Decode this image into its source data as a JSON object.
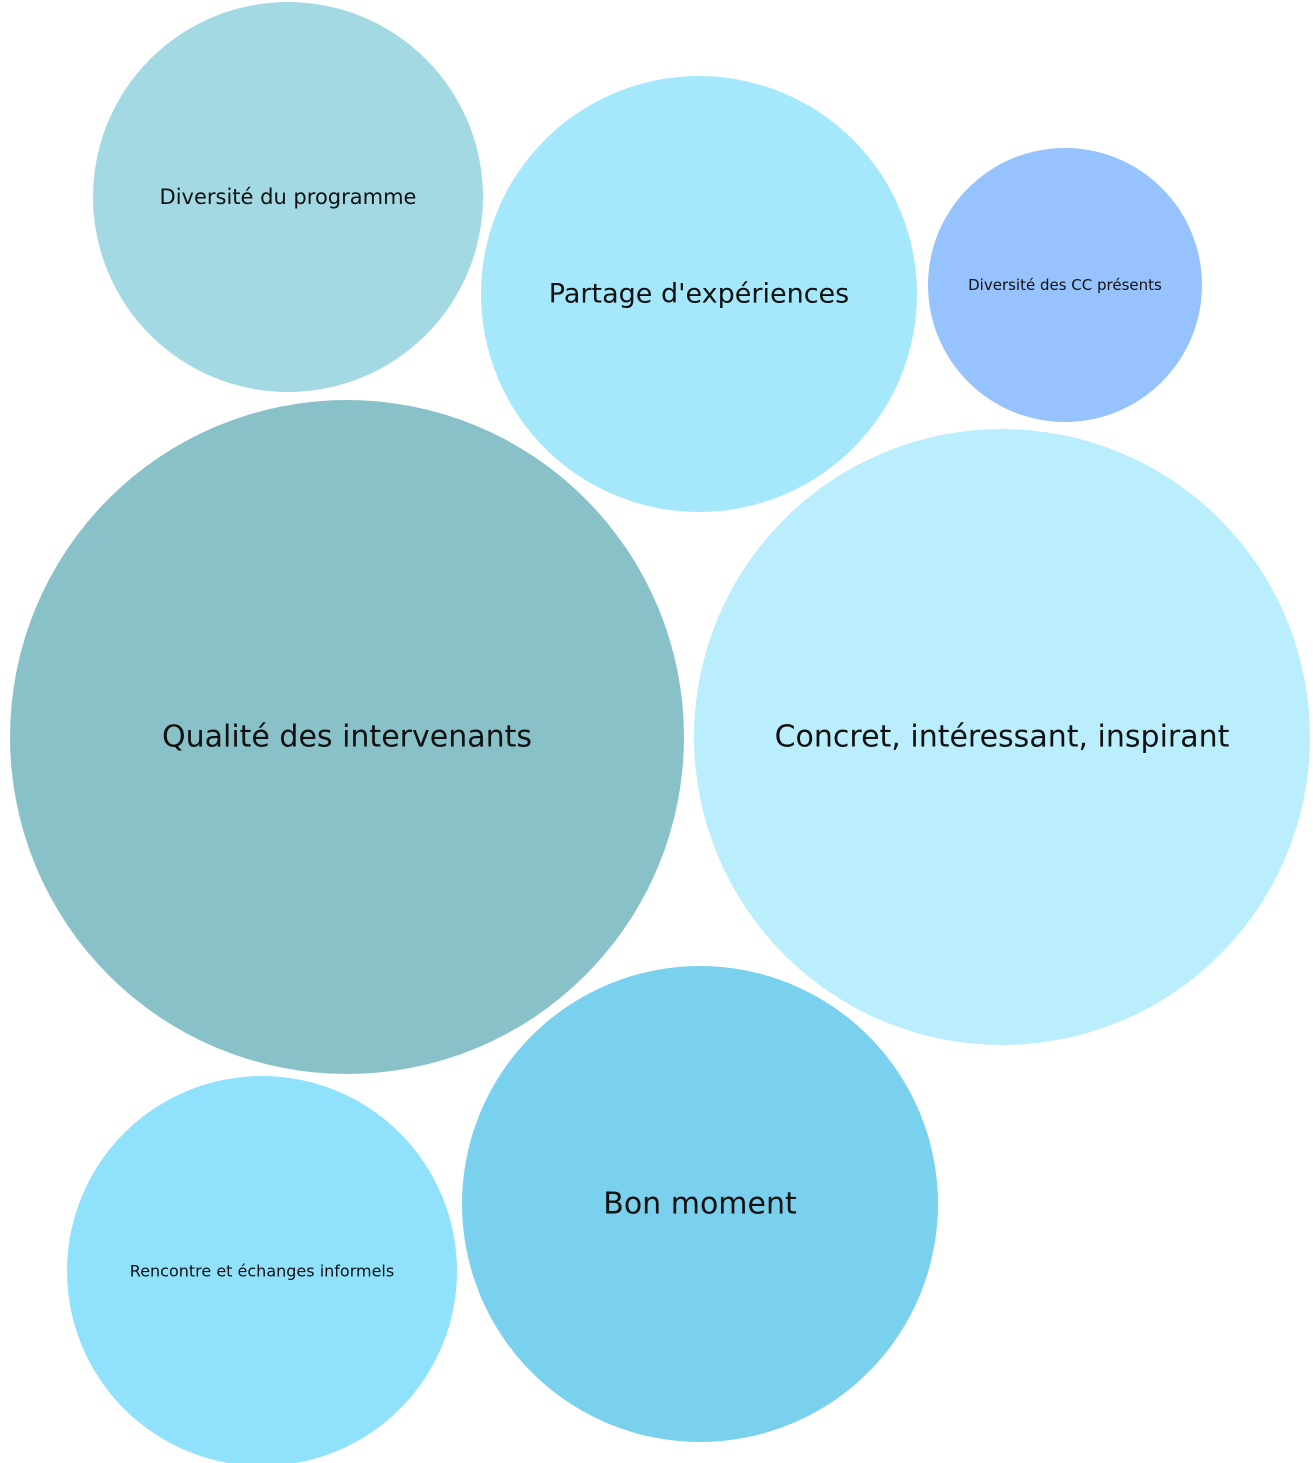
{
  "chart_data": {
    "type": "bubble",
    "title": "",
    "bubbles": [
      {
        "label": "Diversité du programme",
        "color": "#A2D9E3"
      },
      {
        "label": "Partage d'expériences",
        "color": "#A6E8FB"
      },
      {
        "label": "Diversité des CC présents",
        "color": "#96C2FD"
      },
      {
        "label": "Qualité des intervenants",
        "color": "#88C2C8"
      },
      {
        "label": "Concret, intéressant, inspirant",
        "color": "#BAEEFD"
      },
      {
        "label": "Rencontre et échanges informels",
        "color": "#90E1FB"
      },
      {
        "label": "Bon moment",
        "color": "#7AD1EE"
      }
    ]
  }
}
